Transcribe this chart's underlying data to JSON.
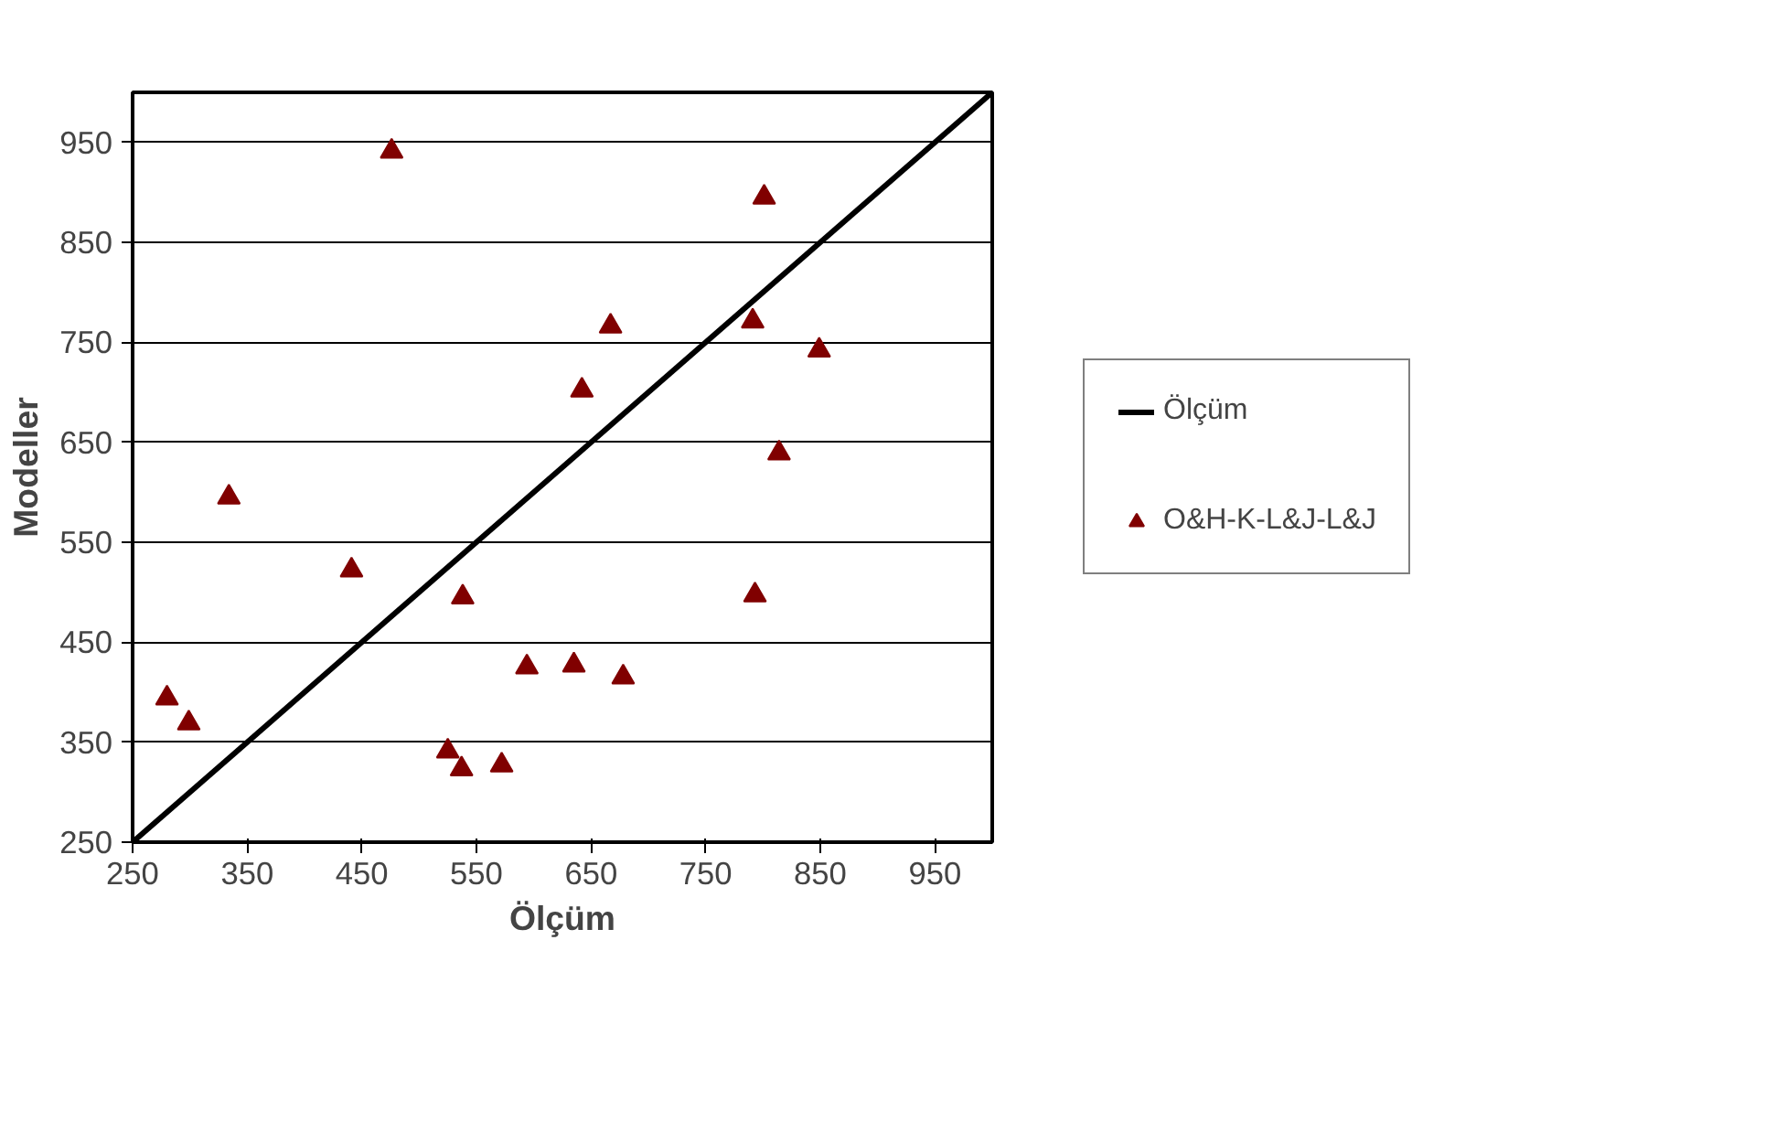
{
  "chart_data": {
    "type": "scatter",
    "xlabel": "Ölçüm",
    "ylabel": "Modeller",
    "xlim": [
      250,
      1000
    ],
    "ylim": [
      250,
      1000
    ],
    "xticks": [
      250,
      350,
      450,
      550,
      650,
      750,
      850,
      950
    ],
    "yticks": [
      250,
      350,
      450,
      550,
      650,
      750,
      850,
      950
    ],
    "grid": "y",
    "legend": "right",
    "series": [
      {
        "name": "Ölçüm",
        "type": "line",
        "color": "#000000",
        "x": [
          250,
          1000
        ],
        "values": [
          250,
          1000
        ]
      },
      {
        "name": "O&H-K-L&J-L&J",
        "marker": "triangle",
        "color": "#800000",
        "x": [
          280,
          299,
          334,
          441,
          476,
          538,
          525,
          537,
          572,
          594,
          635,
          678,
          642,
          667,
          791,
          801,
          849,
          814,
          793
        ],
        "values": [
          394,
          369,
          595,
          522,
          941,
          495,
          341,
          323,
          327,
          425,
          427,
          415,
          702,
          766,
          771,
          895,
          742,
          639,
          497
        ]
      }
    ]
  }
}
